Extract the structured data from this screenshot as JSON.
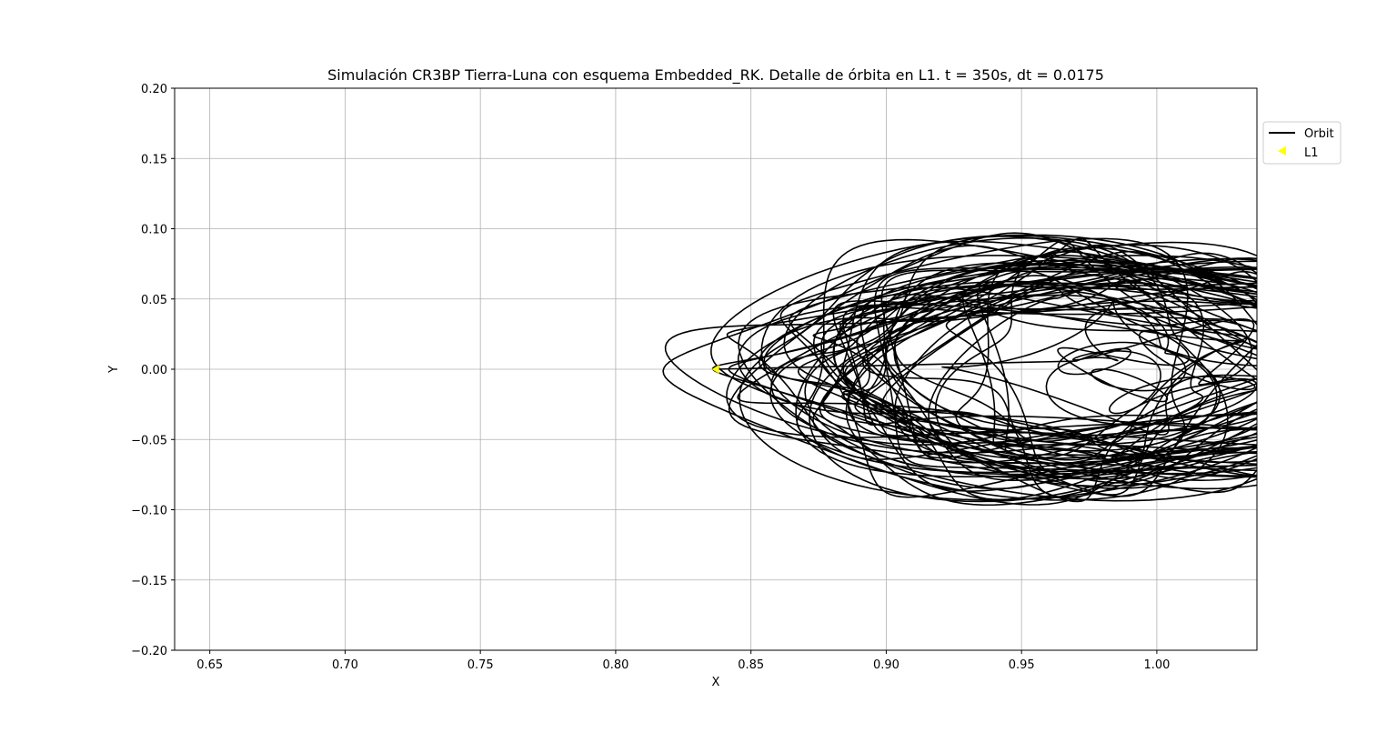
{
  "chart_data": {
    "type": "line",
    "title": "Simulación CR3BP Tierra-Luna con esquema Embedded_RK. Detalle de órbita en L1. t = 350s, dt = 0.0175",
    "xlabel": "X",
    "ylabel": "Y",
    "xlim": [
      0.637,
      1.037
    ],
    "ylim": [
      -0.2,
      0.2
    ],
    "xticks": [
      0.65,
      0.7,
      0.75,
      0.8,
      0.85,
      0.9,
      0.95,
      1.0
    ],
    "xtick_labels": [
      "0.65",
      "0.70",
      "0.75",
      "0.80",
      "0.85",
      "0.90",
      "0.95",
      "1.00"
    ],
    "yticks": [
      0.2,
      0.15,
      0.1,
      0.05,
      0.0,
      -0.05,
      -0.1,
      -0.15,
      -0.2
    ],
    "ytick_labels": [
      "0.20",
      "0.15",
      "0.10",
      "0.05",
      "0.00",
      "−0.05",
      "−0.10",
      "−0.15",
      "−0.20"
    ],
    "grid": true,
    "legend": {
      "placement": "outside-upper-right",
      "entries": [
        "Orbit",
        "L1"
      ]
    },
    "series": [
      {
        "name": "Orbit",
        "color": "#000000",
        "style": "line",
        "description_params": {
          "center_x": 0.975,
          "amp_x": 0.11,
          "amp_y": 0.085,
          "start_x": 0.8369,
          "start_y": 0.0
        }
      },
      {
        "name": "L1",
        "color": "#ffff00",
        "marker": "triangle-left",
        "points": [
          {
            "x": 0.8369,
            "y": 0.0
          }
        ]
      }
    ]
  }
}
